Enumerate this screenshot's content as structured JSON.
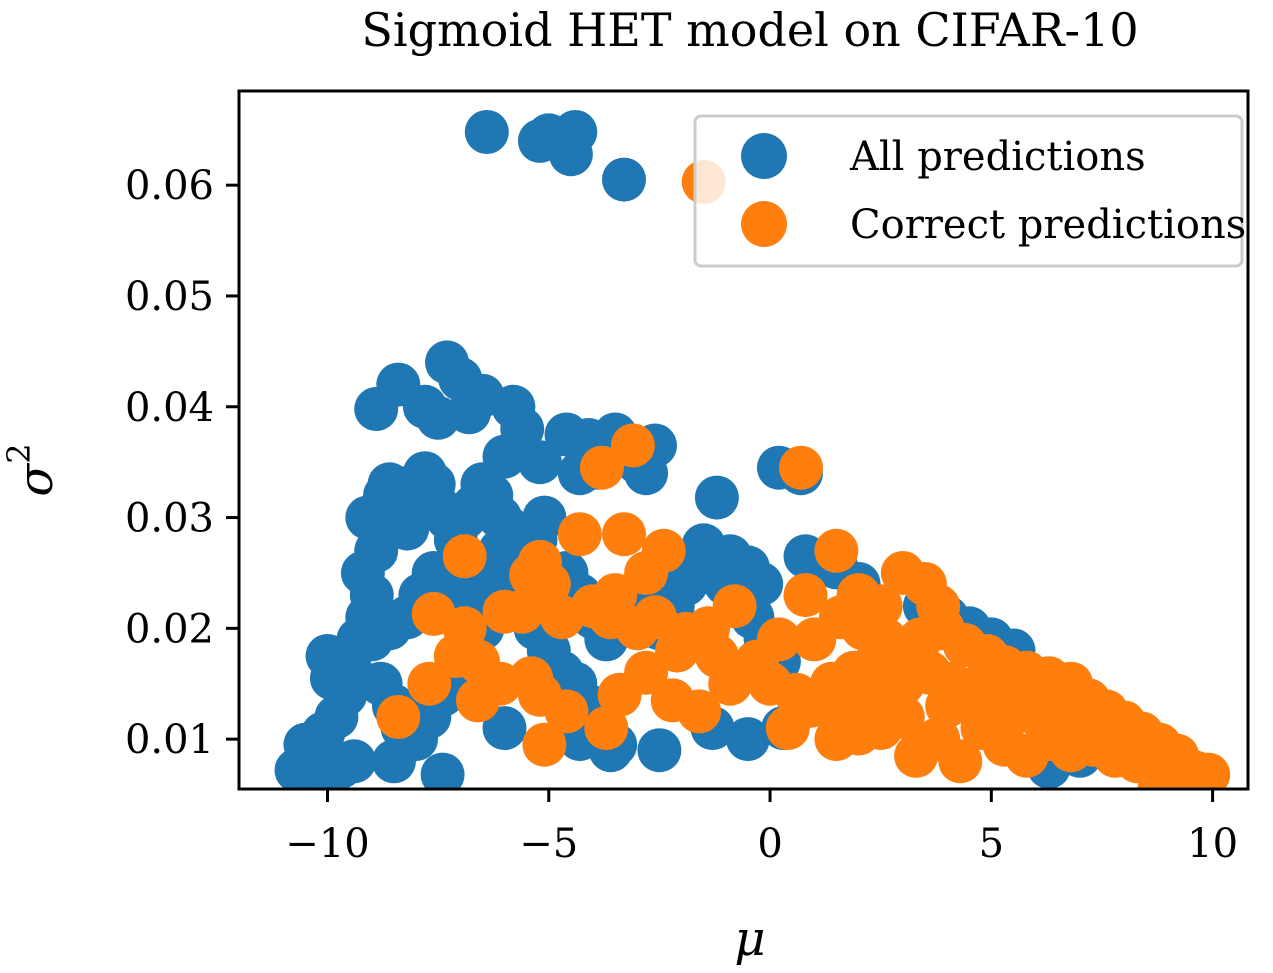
{
  "chart_data": {
    "type": "scatter",
    "title": "Sigmoid HET model on CIFAR-10",
    "xlabel": "μ",
    "ylabel": "σ",
    "ylabel_superscript": "2",
    "xlim": [
      -12.0,
      10.8
    ],
    "ylim": [
      0.0055,
      0.0685
    ],
    "x_ticks": [
      -10,
      -5,
      0,
      5,
      10
    ],
    "x_tick_labels": [
      "−10",
      "−5",
      "0",
      "5",
      "10"
    ],
    "y_ticks": [
      0.01,
      0.02,
      0.03,
      0.04,
      0.05,
      0.06
    ],
    "y_tick_labels": [
      "0.01",
      "0.02",
      "0.03",
      "0.04",
      "0.05",
      "0.06"
    ],
    "legend_position": "top-right",
    "series": [
      {
        "name": "All predictions",
        "color": "#1f77b4",
        "points": [
          [
            -10.7,
            0.0072
          ],
          [
            -10.2,
            0.0068
          ],
          [
            -10.0,
            0.007
          ],
          [
            -9.7,
            0.0075
          ],
          [
            -9.4,
            0.008
          ],
          [
            -10.5,
            0.0095
          ],
          [
            -10.1,
            0.0105
          ],
          [
            -9.8,
            0.012
          ],
          [
            -9.6,
            0.014
          ],
          [
            -9.9,
            0.0155
          ],
          [
            -10.0,
            0.0175
          ],
          [
            -9.5,
            0.0165
          ],
          [
            -9.3,
            0.019
          ],
          [
            -9.1,
            0.021
          ],
          [
            -9.0,
            0.023
          ],
          [
            -9.2,
            0.025
          ],
          [
            -8.9,
            0.027
          ],
          [
            -8.8,
            0.0285
          ],
          [
            -9.1,
            0.03
          ],
          [
            -8.7,
            0.032
          ],
          [
            -8.6,
            0.033
          ],
          [
            -8.4,
            0.031
          ],
          [
            -8.2,
            0.029
          ],
          [
            -8.0,
            0.033
          ],
          [
            -7.8,
            0.034
          ],
          [
            -7.6,
            0.033
          ],
          [
            -7.5,
            0.031
          ],
          [
            -7.3,
            0.03
          ],
          [
            -7.1,
            0.028
          ],
          [
            -6.9,
            0.03
          ],
          [
            -6.7,
            0.031
          ],
          [
            -6.5,
            0.033
          ],
          [
            -6.3,
            0.032
          ],
          [
            -6.1,
            0.03
          ],
          [
            -5.9,
            0.029
          ],
          [
            -5.7,
            0.027
          ],
          [
            -5.5,
            0.026
          ],
          [
            -5.3,
            0.028
          ],
          [
            -5.1,
            0.03
          ],
          [
            -8.8,
            0.015
          ],
          [
            -8.5,
            0.013
          ],
          [
            -8.3,
            0.011
          ],
          [
            -8.0,
            0.01
          ],
          [
            -7.7,
            0.012
          ],
          [
            -7.4,
            0.014
          ],
          [
            -7.1,
            0.016
          ],
          [
            -6.8,
            0.018
          ],
          [
            -6.5,
            0.02
          ],
          [
            -6.2,
            0.022
          ],
          [
            -5.9,
            0.024
          ],
          [
            -5.6,
            0.022
          ],
          [
            -5.3,
            0.02
          ],
          [
            -5.0,
            0.018
          ],
          [
            -4.7,
            0.016
          ],
          [
            -4.4,
            0.015
          ],
          [
            -4.1,
            0.013
          ],
          [
            -3.8,
            0.011
          ],
          [
            -3.5,
            0.0095
          ],
          [
            -9.0,
            0.019
          ],
          [
            -8.6,
            0.02
          ],
          [
            -8.2,
            0.021
          ],
          [
            -7.9,
            0.023
          ],
          [
            -7.6,
            0.025
          ],
          [
            -7.3,
            0.024
          ],
          [
            -7.0,
            0.022
          ],
          [
            -6.7,
            0.023
          ],
          [
            -6.4,
            0.025
          ],
          [
            -6.1,
            0.027
          ],
          [
            -5.8,
            0.025
          ],
          [
            -5.5,
            0.023
          ],
          [
            -5.2,
            0.021
          ],
          [
            -4.9,
            0.023
          ],
          [
            -4.6,
            0.025
          ],
          [
            -4.3,
            0.023
          ],
          [
            -4.0,
            0.021
          ],
          [
            -3.7,
            0.019
          ],
          [
            -3.4,
            0.021
          ],
          [
            -3.1,
            0.023
          ],
          [
            -2.8,
            0.021
          ],
          [
            -2.5,
            0.02
          ],
          [
            -2.2,
            0.022
          ],
          [
            -1.9,
            0.024
          ],
          [
            -1.6,
            0.026
          ],
          [
            -1.3,
            0.025
          ],
          [
            -1.0,
            0.024
          ],
          [
            -0.7,
            0.023
          ],
          [
            -0.4,
            0.021
          ],
          [
            -0.1,
            0.019
          ],
          [
            0.2,
            0.017
          ],
          [
            -8.5,
            0.008
          ],
          [
            -7.4,
            0.0068
          ],
          [
            -6.0,
            0.011
          ],
          [
            -4.3,
            0.01
          ],
          [
            -3.6,
            0.009
          ],
          [
            -2.5,
            0.009
          ],
          [
            -1.3,
            0.011
          ],
          [
            -0.5,
            0.01
          ],
          [
            0.3,
            0.011
          ],
          [
            -8.4,
            0.042
          ],
          [
            -7.3,
            0.044
          ],
          [
            -7.0,
            0.0425
          ],
          [
            -6.5,
            0.041
          ],
          [
            -5.8,
            0.04
          ],
          [
            -8.9,
            0.0398
          ],
          [
            -7.8,
            0.04
          ],
          [
            -7.5,
            0.039
          ],
          [
            -6.8,
            0.0395
          ],
          [
            -5.6,
            0.038
          ],
          [
            -4.6,
            0.0375
          ],
          [
            -4.1,
            0.037
          ],
          [
            -3.5,
            0.0375
          ],
          [
            -2.6,
            0.0365
          ],
          [
            -2.8,
            0.034
          ],
          [
            -5.2,
            0.035
          ],
          [
            -6.0,
            0.0355
          ],
          [
            -4.3,
            0.034
          ],
          [
            -3.9,
            0.0345
          ],
          [
            -3.0,
            0.035
          ],
          [
            -1.2,
            0.0318
          ],
          [
            0.2,
            0.0345
          ],
          [
            0.7,
            0.034
          ],
          [
            -1.5,
            0.0275
          ],
          [
            -0.9,
            0.0265
          ],
          [
            -0.5,
            0.0255
          ],
          [
            -0.2,
            0.024
          ],
          [
            0.8,
            0.0265
          ],
          [
            1.5,
            0.0255
          ],
          [
            2.0,
            0.024
          ],
          [
            3.5,
            0.022
          ],
          [
            4.0,
            0.021
          ],
          [
            4.5,
            0.02
          ],
          [
            5.0,
            0.019
          ],
          [
            5.5,
            0.018
          ],
          [
            6.3,
            0.0075
          ],
          [
            7.0,
            0.0085
          ],
          [
            -6.4,
            0.0648
          ],
          [
            -5.0,
            0.0645
          ],
          [
            -4.7,
            0.064
          ],
          [
            -4.4,
            0.0648
          ],
          [
            -4.5,
            0.0628
          ],
          [
            -3.3,
            0.0605
          ],
          [
            -5.2,
            0.064
          ]
        ]
      },
      {
        "name": "Correct predictions",
        "color": "#ff7f0e",
        "points": [
          [
            -1.5,
            0.0603
          ],
          [
            -3.8,
            0.0345
          ],
          [
            -3.1,
            0.0365
          ],
          [
            0.7,
            0.0345
          ],
          [
            -6.9,
            0.0265
          ],
          [
            -4.3,
            0.0285
          ],
          [
            -3.3,
            0.0285
          ],
          [
            -2.4,
            0.027
          ],
          [
            -5.2,
            0.026
          ],
          [
            -5.4,
            0.0248
          ],
          [
            -5.0,
            0.024
          ],
          [
            -4.0,
            0.022
          ],
          [
            -3.5,
            0.023
          ],
          [
            -2.8,
            0.025
          ],
          [
            -7.6,
            0.0213
          ],
          [
            -6.9,
            0.02
          ],
          [
            -6.0,
            0.0215
          ],
          [
            -5.6,
            0.0215
          ],
          [
            -4.7,
            0.021
          ],
          [
            -3.6,
            0.021
          ],
          [
            -3.0,
            0.02
          ],
          [
            -7.1,
            0.0175
          ],
          [
            -6.6,
            0.017
          ],
          [
            -6.1,
            0.015
          ],
          [
            -7.7,
            0.015
          ],
          [
            -6.6,
            0.0135
          ],
          [
            -5.4,
            0.0155
          ],
          [
            -5.2,
            0.014
          ],
          [
            -4.6,
            0.0125
          ],
          [
            -3.4,
            0.014
          ],
          [
            -2.8,
            0.016
          ],
          [
            -2.1,
            0.018
          ],
          [
            -1.4,
            0.02
          ],
          [
            -0.8,
            0.022
          ],
          [
            -8.4,
            0.012
          ],
          [
            -5.1,
            0.0095
          ],
          [
            -3.7,
            0.011
          ],
          [
            -2.2,
            0.0135
          ],
          [
            -1.6,
            0.0125
          ],
          [
            -0.9,
            0.015
          ],
          [
            -0.3,
            0.017
          ],
          [
            0.2,
            0.019
          ],
          [
            0.8,
            0.023
          ],
          [
            1.5,
            0.027
          ],
          [
            2.0,
            0.023
          ],
          [
            2.5,
            0.022
          ],
          [
            3.0,
            0.025
          ],
          [
            3.5,
            0.024
          ],
          [
            3.8,
            0.022
          ],
          [
            0.4,
            0.011
          ],
          [
            0.9,
            0.013
          ],
          [
            1.4,
            0.015
          ],
          [
            1.9,
            0.016
          ],
          [
            2.4,
            0.017
          ],
          [
            2.9,
            0.018
          ],
          [
            3.4,
            0.019
          ],
          [
            3.9,
            0.02
          ],
          [
            4.4,
            0.0185
          ],
          [
            4.9,
            0.0175
          ],
          [
            5.3,
            0.0165
          ],
          [
            5.8,
            0.016
          ],
          [
            6.3,
            0.0155
          ],
          [
            6.8,
            0.015
          ],
          [
            7.2,
            0.0135
          ],
          [
            7.6,
            0.0125
          ],
          [
            8.0,
            0.0115
          ],
          [
            8.4,
            0.0105
          ],
          [
            8.8,
            0.0095
          ],
          [
            9.2,
            0.0085
          ],
          [
            9.6,
            0.007
          ],
          [
            9.9,
            0.0068
          ],
          [
            8.8,
            0.0055
          ],
          [
            9.4,
            0.0062
          ],
          [
            1.5,
            0.01
          ],
          [
            2.0,
            0.0105
          ],
          [
            2.5,
            0.011
          ],
          [
            3.0,
            0.012
          ],
          [
            3.3,
            0.0085
          ],
          [
            3.8,
            0.01
          ],
          [
            4.3,
            0.008
          ],
          [
            4.8,
            0.011
          ],
          [
            5.3,
            0.0095
          ],
          [
            5.8,
            0.0085
          ],
          [
            6.3,
            0.01
          ],
          [
            6.8,
            0.009
          ],
          [
            7.3,
            0.0095
          ],
          [
            7.8,
            0.0085
          ],
          [
            8.3,
            0.008
          ],
          [
            1.0,
            0.019
          ],
          [
            1.6,
            0.021
          ],
          [
            2.1,
            0.02
          ],
          [
            2.6,
            0.019
          ],
          [
            3.1,
            0.017
          ],
          [
            3.6,
            0.016
          ],
          [
            4.1,
            0.015
          ],
          [
            4.6,
            0.014
          ],
          [
            5.1,
            0.013
          ],
          [
            5.6,
            0.0125
          ],
          [
            6.1,
            0.012
          ],
          [
            6.6,
            0.0115
          ],
          [
            7.1,
            0.011
          ],
          [
            -2.6,
            0.021
          ],
          [
            -1.9,
            0.0195
          ],
          [
            -1.2,
            0.0175
          ],
          [
            -0.6,
            0.016
          ],
          [
            0.0,
            0.015
          ],
          [
            0.6,
            0.014
          ],
          [
            1.2,
            0.0135
          ],
          [
            1.8,
            0.0125
          ],
          [
            2.4,
            0.0145
          ],
          [
            3.0,
            0.015
          ],
          [
            4.0,
            0.013
          ],
          [
            4.8,
            0.015
          ],
          [
            5.5,
            0.0145
          ],
          [
            6.2,
            0.014
          ]
        ]
      }
    ]
  }
}
